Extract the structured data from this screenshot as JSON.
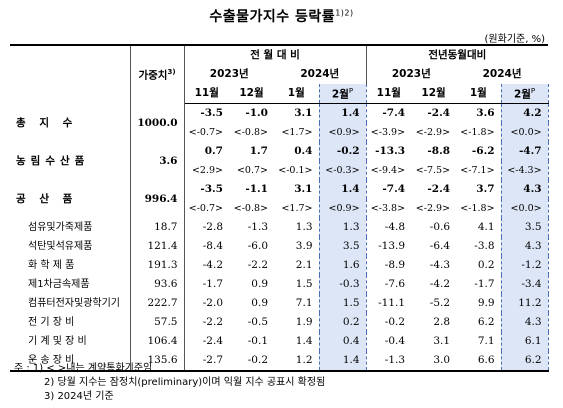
{
  "title": "수출물가지수 등락률",
  "title_sup": "1)2)",
  "unit": "(원화기준, %)",
  "header": {
    "weight": "가중치",
    "weight_sup": "3)",
    "group_mom": "전 월 대 비",
    "group_yoy": "전년동월대비",
    "year_2023": "2023년",
    "year_2024": "2024년",
    "months": [
      "11월",
      "12월",
      "1월",
      "2월"
    ],
    "prelim_mark": "P"
  },
  "rows": [
    {
      "type": "main",
      "label": "총 지 수",
      "weight": "1000.0",
      "mom": [
        "-3.5",
        "-1.0",
        "3.1",
        "1.4"
      ],
      "mom_p": [
        "<-0.7>",
        "<-0.8>",
        "<1.7>",
        "<0.9>"
      ],
      "yoy": [
        "-7.4",
        "-2.4",
        "3.6",
        "4.2"
      ],
      "yoy_p": [
        "<-3.9>",
        "<-2.9>",
        "<-1.8>",
        "<0.0>"
      ]
    },
    {
      "type": "main",
      "label": "농림수산품",
      "weight": "3.6",
      "mom": [
        "0.7",
        "1.7",
        "0.4",
        "-0.2"
      ],
      "mom_p": [
        "<2.9>",
        "<0.7>",
        "<-0.1>",
        "<-0.3>"
      ],
      "yoy": [
        "-13.3",
        "-8.8",
        "-6.2",
        "-4.7"
      ],
      "yoy_p": [
        "<-9.4>",
        "<-7.5>",
        "<-7.1>",
        "<-4.3>"
      ]
    },
    {
      "type": "main",
      "label": "공 산 품",
      "weight": "996.4",
      "mom": [
        "-3.5",
        "-1.1",
        "3.1",
        "1.4"
      ],
      "mom_p": [
        "<-0.7>",
        "<-0.8>",
        "<1.7>",
        "<0.9>"
      ],
      "yoy": [
        "-7.4",
        "-2.4",
        "3.7",
        "4.3"
      ],
      "yoy_p": [
        "<-3.8>",
        "<-2.9>",
        "<-1.8>",
        "<0.0>"
      ]
    },
    {
      "type": "sub",
      "label": "섬유및가죽제품",
      "weight": "18.7",
      "mom": [
        "-2.8",
        "-1.3",
        "1.3",
        "1.3"
      ],
      "yoy": [
        "-4.8",
        "-0.6",
        "4.1",
        "3.5"
      ]
    },
    {
      "type": "sub",
      "label": "석탄및석유제품",
      "weight": "121.4",
      "mom": [
        "-8.4",
        "-6.0",
        "3.9",
        "3.5"
      ],
      "yoy": [
        "-13.9",
        "-6.4",
        "-3.8",
        "4.3"
      ]
    },
    {
      "type": "sub",
      "label": "화 학 제 품",
      "weight": "191.3",
      "mom": [
        "-4.2",
        "-2.2",
        "2.1",
        "1.6"
      ],
      "yoy": [
        "-8.9",
        "-4.3",
        "0.2",
        "-1.2"
      ]
    },
    {
      "type": "sub",
      "label": "제1차금속제품",
      "weight": "93.6",
      "mom": [
        "-1.7",
        "0.9",
        "1.5",
        "-0.3"
      ],
      "yoy": [
        "-7.6",
        "-4.2",
        "-1.7",
        "-3.4"
      ]
    },
    {
      "type": "sub",
      "label": "컴퓨터전자및광학기기",
      "weight": "222.7",
      "mom": [
        "-2.0",
        "0.9",
        "7.1",
        "1.5"
      ],
      "yoy": [
        "-11.1",
        "-5.2",
        "9.9",
        "11.2"
      ]
    },
    {
      "type": "sub",
      "label": "전 기 장 비",
      "weight": "57.5",
      "mom": [
        "-2.2",
        "-0.5",
        "1.9",
        "0.2"
      ],
      "yoy": [
        "-0.2",
        "2.8",
        "6.2",
        "4.3"
      ]
    },
    {
      "type": "sub",
      "label": "기 계 및 장 비",
      "weight": "106.4",
      "mom": [
        "-2.4",
        "-0.1",
        "1.4",
        "0.4"
      ],
      "yoy": [
        "-0.4",
        "3.1",
        "7.1",
        "6.1"
      ]
    },
    {
      "type": "sub",
      "label": "운 송 장 비",
      "weight": "135.6",
      "mom": [
        "-2.7",
        "-0.2",
        "1.2",
        "1.4"
      ],
      "yoy": [
        "-1.3",
        "3.0",
        "6.6",
        "6.2"
      ]
    }
  ],
  "notes": [
    "주 : 1) < >내는 계약통화기준임",
    "2) 당월 지수는 잠정치(preliminary)이며 익월 지수 공표시 확정됨",
    "3) 2024년 기준"
  ]
}
